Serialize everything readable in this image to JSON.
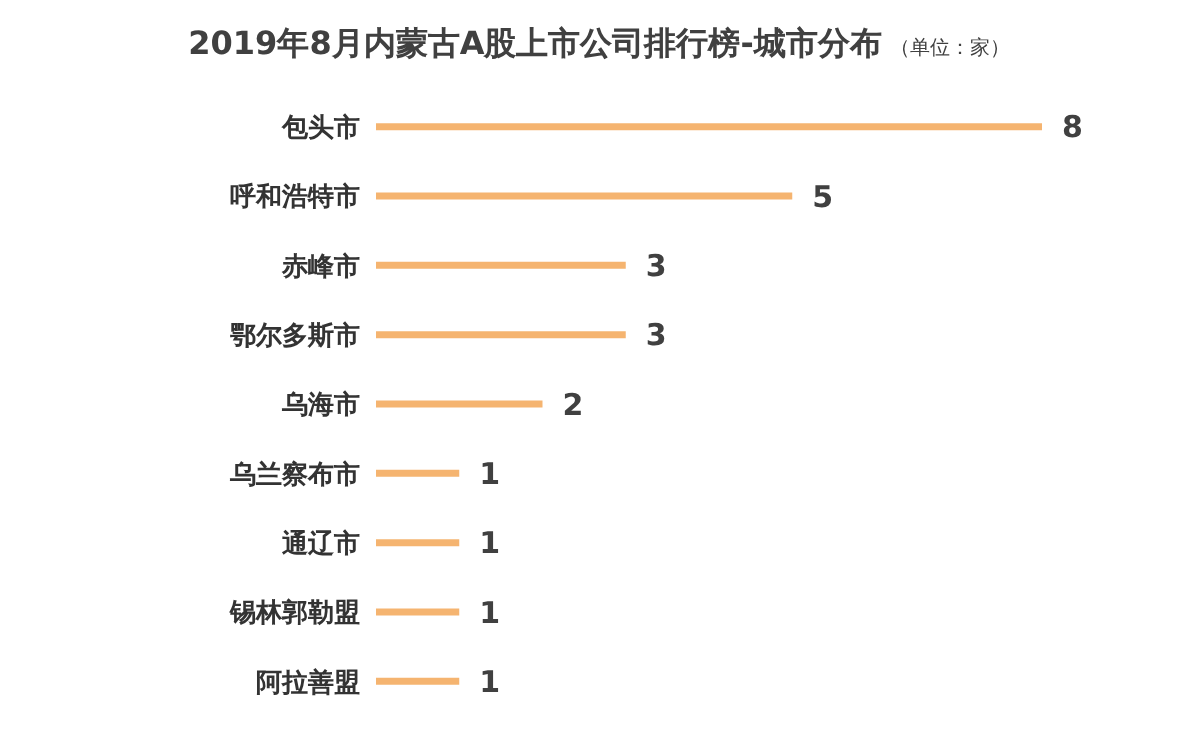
{
  "chart_data": {
    "type": "bar",
    "orientation": "horizontal",
    "title": "2019年8月内蒙古A股上市公司排行榜-城市分布",
    "subtitle": "（单位：家）",
    "categories": [
      "包头市",
      "呼和浩特市",
      "赤峰市",
      "鄂尔多斯市",
      "乌海市",
      "乌兰察布市",
      "通辽市",
      "锡林郭勒盟",
      "阿拉善盟"
    ],
    "values": [
      8,
      5,
      3,
      3,
      2,
      1,
      1,
      1,
      1
    ],
    "color": "#f5b470",
    "data_labels": true,
    "grid": false,
    "legend": false
  }
}
